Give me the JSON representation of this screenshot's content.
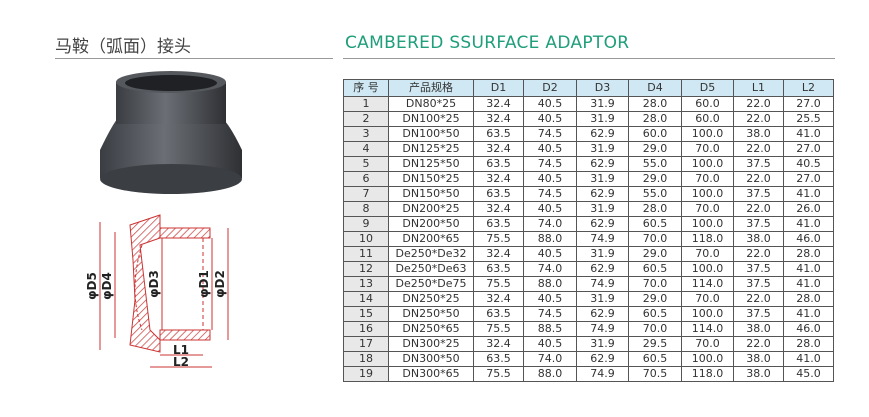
{
  "header": {
    "title_cn": "马鞍（弧面）接头",
    "title_en": "CAMBERED SSURFACE ADAPTOR"
  },
  "diagram": {
    "labels": [
      "φD5",
      "φD4",
      "φD3",
      "φD1",
      "φD2",
      "L1",
      "L2"
    ]
  },
  "table": {
    "columns": [
      "序 号",
      "产品规格",
      "D1",
      "D2",
      "D3",
      "D4",
      "D5",
      "L1",
      "L2"
    ],
    "rows": [
      [
        "1",
        "DN80*25",
        "32.4",
        "40.5",
        "31.9",
        "28.0",
        "60.0",
        "22.0",
        "27.0"
      ],
      [
        "2",
        "DN100*25",
        "32.4",
        "40.5",
        "31.9",
        "28.0",
        "60.0",
        "22.0",
        "25.5"
      ],
      [
        "3",
        "DN100*50",
        "63.5",
        "74.5",
        "62.9",
        "60.0",
        "100.0",
        "38.0",
        "41.0"
      ],
      [
        "4",
        "DN125*25",
        "32.4",
        "40.5",
        "31.9",
        "29.0",
        "70.0",
        "22.0",
        "27.0"
      ],
      [
        "5",
        "DN125*50",
        "63.5",
        "74.5",
        "62.9",
        "55.0",
        "100.0",
        "37.5",
        "40.5"
      ],
      [
        "6",
        "DN150*25",
        "32.4",
        "40.5",
        "31.9",
        "29.0",
        "70.0",
        "22.0",
        "27.0"
      ],
      [
        "7",
        "DN150*50",
        "63.5",
        "74.5",
        "62.9",
        "55.0",
        "100.0",
        "37.5",
        "41.0"
      ],
      [
        "8",
        "DN200*25",
        "32.4",
        "40.5",
        "31.9",
        "28.0",
        "70.0",
        "22.0",
        "26.0"
      ],
      [
        "9",
        "DN200*50",
        "63.5",
        "74.0",
        "62.9",
        "60.5",
        "100.0",
        "37.5",
        "41.0"
      ],
      [
        "10",
        "DN200*65",
        "75.5",
        "88.0",
        "74.9",
        "70.0",
        "118.0",
        "38.0",
        "46.0"
      ],
      [
        "11",
        "De250*De32",
        "32.4",
        "40.5",
        "31.9",
        "29.0",
        "70.0",
        "22.0",
        "28.0"
      ],
      [
        "12",
        "De250*De63",
        "63.5",
        "74.0",
        "62.9",
        "60.5",
        "100.0",
        "37.5",
        "41.0"
      ],
      [
        "13",
        "De250*De75",
        "75.5",
        "88.0",
        "74.9",
        "70.0",
        "114.0",
        "37.5",
        "41.0"
      ],
      [
        "14",
        "DN250*25",
        "32.4",
        "40.5",
        "31.9",
        "29.0",
        "70.0",
        "22.0",
        "28.0"
      ],
      [
        "15",
        "DN250*50",
        "63.5",
        "74.5",
        "62.9",
        "60.5",
        "100.0",
        "37.5",
        "41.0"
      ],
      [
        "16",
        "DN250*65",
        "75.5",
        "88.5",
        "74.9",
        "70.0",
        "114.0",
        "38.0",
        "46.0"
      ],
      [
        "17",
        "DN300*25",
        "32.4",
        "40.5",
        "31.9",
        "29.5",
        "70.0",
        "22.0",
        "28.0"
      ],
      [
        "18",
        "DN300*50",
        "63.5",
        "74.0",
        "62.9",
        "60.5",
        "100.0",
        "38.0",
        "41.0"
      ],
      [
        "19",
        "DN300*65",
        "75.5",
        "88.0",
        "74.9",
        "70.5",
        "118.0",
        "38.0",
        "45.0"
      ]
    ]
  }
}
